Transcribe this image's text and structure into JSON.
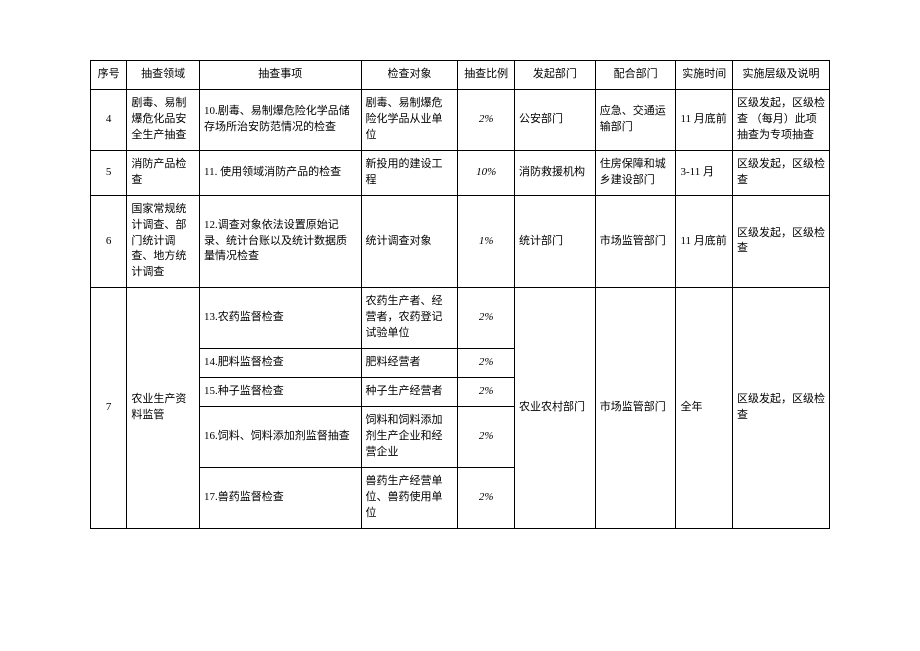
{
  "headers": {
    "seq": "序号",
    "field": "抽查领域",
    "item": "抽查事项",
    "obj": "检查对象",
    "ratio": "抽查比例",
    "dept": "发起部门",
    "coop": "配合部门",
    "time": "实施时间",
    "note": "实施层级及说明"
  },
  "rows": {
    "r4": {
      "seq": "4",
      "field": "剧毒、易制爆危化品安全生产抽查",
      "item": "10.剧毒、易制爆危险化学品储存场所治安防范情况的检查",
      "obj": "剧毒、易制爆危险化学品从业单位",
      "ratio": "2%",
      "dept": "公安部门",
      "coop": "应急、交通运输部门",
      "time": "11 月底前",
      "note": "区级发起，区级检查\n（每月）此项抽查为专项抽查"
    },
    "r5": {
      "seq": "5",
      "field": "消防产品检查",
      "item": "11. 使用领域消防产品的检查",
      "obj": "新投用的建设工程",
      "ratio": "10%",
      "dept": "消防救援机构",
      "coop": "住房保障和城乡建设部门",
      "time": "3-11 月",
      "note": "区级发起，区级检查"
    },
    "r6": {
      "seq": "6",
      "field": "国家常规统计调查、部门统计调查、地方统计调查",
      "item": "12.调查对象依法设置原始记录、统计台账以及统计数据质量情况检查",
      "obj": "统计调查对象",
      "ratio": "1%",
      "dept": "统计部门",
      "coop": "市场监管部门",
      "time": "11 月底前",
      "note": "区级发起，区级检查"
    },
    "r7": {
      "seq": "7",
      "field": "农业生产资料监管",
      "dept": "农业农村部门",
      "coop": "市场监管部门",
      "time": "全年",
      "note": "区级发起，区级检查",
      "sub": {
        "s1": {
          "item": "13.农药监督检查",
          "obj": "农药生产者、经营者，农药登记试验单位",
          "ratio": "2%"
        },
        "s2": {
          "item": "14.肥料监督检查",
          "obj": "肥料经营者",
          "ratio": "2%"
        },
        "s3": {
          "item": "15.种子监督检查",
          "obj": "种子生产经营者",
          "ratio": "2%"
        },
        "s4": {
          "item": "16.饲料、饲料添加剂监督抽查",
          "obj": "饲料和饲料添加剂生产企业和经营企业",
          "ratio": "2%"
        },
        "s5": {
          "item": "17.兽药监督检查",
          "obj": "兽药生产经营单位、兽药使用单位",
          "ratio": "2%"
        }
      }
    }
  }
}
